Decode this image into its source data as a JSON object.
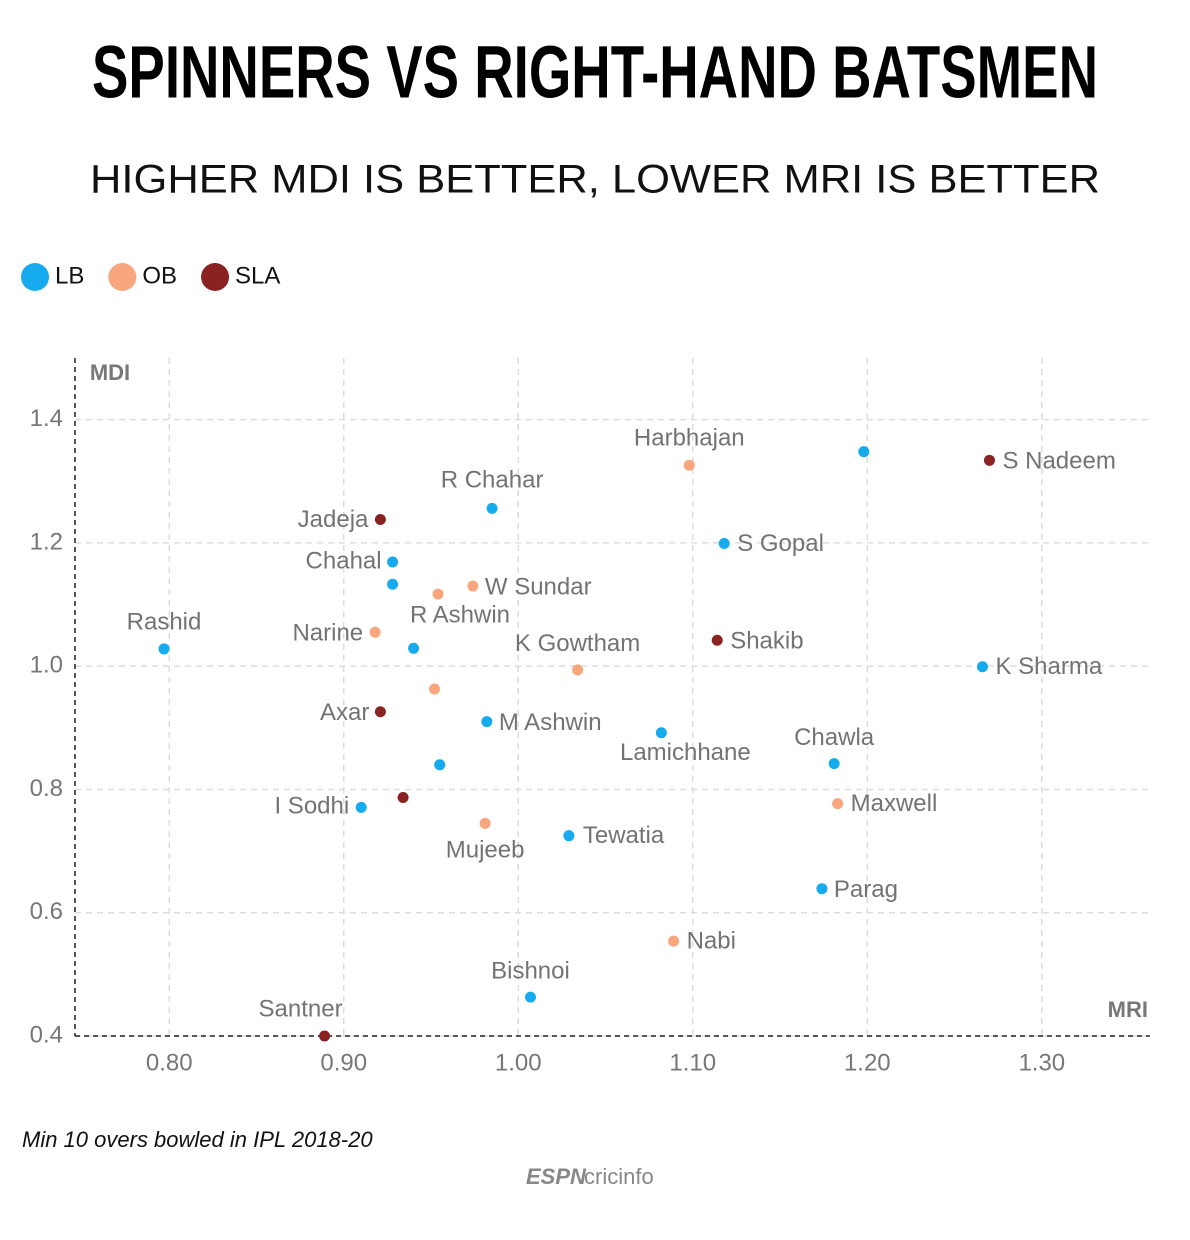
{
  "chart_data": {
    "type": "scatter",
    "title": "SPINNERS VS RIGHT-HAND BATSMEN",
    "subtitle": "HIGHER MDI IS BETTER, LOWER MRI IS BETTER",
    "x_label": "MRI",
    "y_label": "MDI",
    "note": "Min 10 overs bowled in IPL 2018-20",
    "source": [
      "ESPN",
      "cricinfo"
    ],
    "xlim": [
      0.746,
      1.362
    ],
    "ylim": [
      0.4,
      1.5
    ],
    "xticks": [
      {
        "value": 0.8,
        "label": "0.80"
      },
      {
        "value": 0.9,
        "label": "0.90"
      },
      {
        "value": 1.0,
        "label": "1.00"
      },
      {
        "value": 1.1,
        "label": "1.10"
      },
      {
        "value": 1.2,
        "label": "1.20"
      },
      {
        "value": 1.3,
        "label": "1.30"
      }
    ],
    "yticks": [
      0.4,
      0.6,
      0.8,
      {
        "value": 1.0,
        "label": "1.0"
      },
      1.2,
      1.4
    ],
    "grid": true,
    "legend": "top-left",
    "series": [
      {
        "name": "LB",
        "color": "#16aaee",
        "x": [
          1.198,
          0.985,
          1.118,
          0.928,
          0.928,
          0.797,
          0.94,
          1.266,
          0.982,
          1.082,
          0.955,
          1.181,
          0.91,
          1.029,
          1.174,
          1.007
        ],
        "values": [
          1.348,
          1.256,
          1.199,
          1.169,
          1.133,
          1.028,
          1.029,
          0.999,
          0.91,
          0.892,
          0.84,
          0.842,
          0.771,
          0.725,
          0.639,
          0.463
        ],
        "labels": [
          null,
          "R Chahar",
          "S Gopal",
          "Chahal",
          null,
          "Rashid",
          null,
          "K Sharma",
          "M Ashwin",
          "Lamichhane",
          null,
          "Chawla",
          "I Sodhi",
          "Tewatia",
          "Parag",
          "Bishnoi"
        ]
      },
      {
        "name": "OB",
        "color": "#f9a67f",
        "x": [
          1.098,
          0.974,
          0.954,
          0.918,
          1.034,
          0.952,
          1.183,
          0.981,
          1.089
        ],
        "values": [
          1.326,
          1.13,
          1.117,
          1.055,
          0.994,
          0.963,
          0.777,
          0.745,
          0.554
        ],
        "labels": [
          "Harbhajan",
          "W Sundar",
          "R Ashwin",
          "Narine",
          "K Gowtham",
          null,
          "Maxwell",
          "Mujeeb",
          "Nabi"
        ]
      },
      {
        "name": "SLA",
        "color": "#8b2222",
        "x": [
          1.27,
          0.921,
          1.114,
          0.921,
          0.934,
          0.889
        ],
        "values": [
          1.334,
          1.238,
          1.042,
          0.926,
          0.787,
          0.4
        ],
        "labels": [
          "S Nadeem",
          "Jadeja",
          "Shakib",
          "Axar",
          null,
          "Santner"
        ]
      }
    ]
  }
}
